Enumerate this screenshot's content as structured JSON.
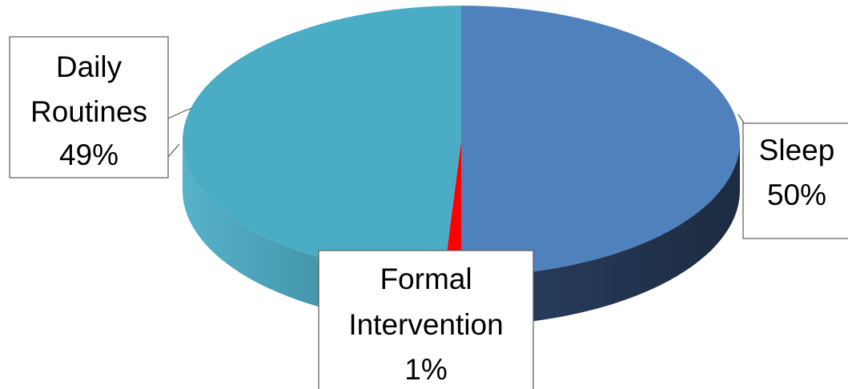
{
  "chart_data": {
    "type": "pie",
    "style": "3d",
    "title": "",
    "slices": [
      {
        "label": "Sleep",
        "value": 50,
        "percent_label": "50%",
        "color": "#4f81bd",
        "side_color": "#22344f"
      },
      {
        "label": "Formal Intervention",
        "value": 1,
        "percent_label": "1%",
        "color": "#ff0000",
        "side_color": "#b30000"
      },
      {
        "label": "Daily Routines",
        "value": 49,
        "percent_label": "49%",
        "color": "#4bacc6",
        "side_color": "#3b8fa5"
      }
    ],
    "legend": "none",
    "data_labels": "callouts"
  },
  "labels": {
    "sleep": {
      "line1": "Sleep",
      "line2": "50%"
    },
    "formal": {
      "line1": "Formal",
      "line2": "Intervention",
      "line3": "1%"
    },
    "daily": {
      "line1": "Daily",
      "line2": "Routines",
      "line3": "49%"
    }
  }
}
